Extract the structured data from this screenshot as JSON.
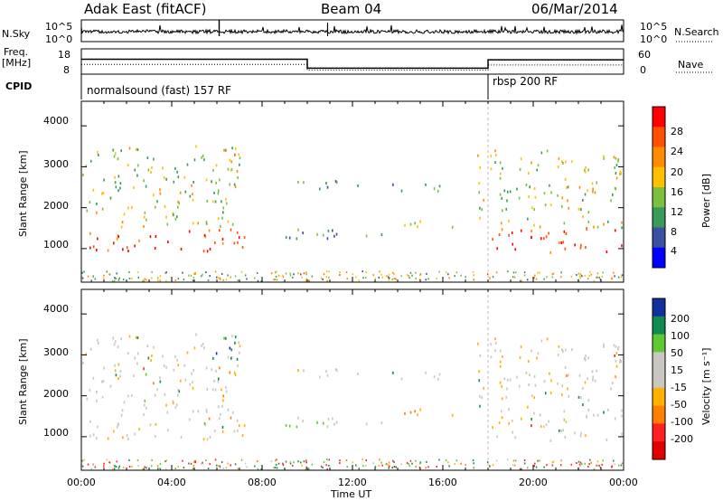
{
  "header": {
    "station": "Adak East (fitACF)",
    "beam": "Beam 04",
    "date": "06/Mar/2014"
  },
  "noise_panel": {
    "left_label": "N.Sky",
    "right_label": "N.Search",
    "left_ticks": [
      "10^5",
      "10^0"
    ],
    "right_ticks": [
      "10^5",
      "10^0"
    ]
  },
  "freq_panel": {
    "left_label_1": "Freq.",
    "left_label_2": "[MHz]",
    "left_ticks": [
      "18",
      "8"
    ],
    "right_label": "Nave",
    "right_ticks": [
      "60",
      "0"
    ],
    "freq_steps": [
      [
        0,
        14.6
      ],
      [
        10.0,
        10.1
      ],
      [
        18.0,
        14.3
      ],
      [
        24,
        14.3
      ]
    ],
    "nave_steps": [
      [
        0,
        24
      ],
      [
        10.0,
        7
      ],
      [
        18.0,
        22
      ],
      [
        24,
        22
      ]
    ]
  },
  "cpid_panel": {
    "label": "CPID",
    "programs": [
      {
        "text": "normalsound (fast) 157 RF",
        "start": 0
      },
      {
        "text": "rbsp 200 RF",
        "start": 18.0
      }
    ]
  },
  "power_panel": {
    "ylabel": "Slant Range [km]",
    "yticks": [
      "4000",
      "3000",
      "2000",
      "1000"
    ],
    "colorbar_label": "Power [dB]",
    "colorbar_ticks": [
      "28",
      "24",
      "20",
      "16",
      "12",
      "8",
      "4"
    ],
    "colorbar_colors": [
      "#ff0000",
      "#ff5000",
      "#ff8c00",
      "#ffc000",
      "#7cc040",
      "#3a9a5a",
      "#3a50a0",
      "#0000ff"
    ]
  },
  "velocity_panel": {
    "ylabel": "Slant Range [km]",
    "yticks": [
      "4000",
      "3000",
      "2000",
      "1000"
    ],
    "colorbar_label": "Velocity [m s⁻¹]",
    "colorbar_ticks": [
      "200",
      "100",
      "50",
      "15",
      "-15",
      "-50",
      "-100",
      "-200"
    ],
    "colorbar_colors": [
      "#1030a0",
      "#108a50",
      "#60c830",
      "#c8c8c0",
      "#c8c8c0",
      "#ffb000",
      "#ff8000",
      "#ff2020",
      "#e00000"
    ]
  },
  "x_axis": {
    "label": "Time UT",
    "ticks": [
      "00:00",
      "04:00",
      "08:00",
      "12:00",
      "16:00",
      "20:00",
      "00:00"
    ]
  },
  "chart_data": {
    "type": "heatmap",
    "title": "Adak East (fitACF) Beam 04 06/Mar/2014",
    "xlabel": "Time UT",
    "ylabel": "Slant Range [km]",
    "xlim": [
      0,
      24
    ],
    "ylim": [
      180,
      4600
    ],
    "power_range_db": [
      0,
      30
    ],
    "velocity_range": [
      -250,
      250
    ],
    "scatter_regions": [
      {
        "name": "early-band",
        "t": [
          0.0,
          7.2
        ],
        "range": [
          900,
          1500
        ],
        "power": 28,
        "velocity": -5
      },
      {
        "name": "early-cloud",
        "t": [
          0.0,
          7.0
        ],
        "range": [
          1500,
          3500
        ],
        "power": 14,
        "velocity": 0
      },
      {
        "name": "early-upper-blue",
        "t": [
          5.8,
          7.2
        ],
        "range": [
          2800,
          3450
        ],
        "power": 22,
        "velocity": 180
      },
      {
        "name": "midday-line",
        "t": [
          8.6,
          14.0
        ],
        "range": [
          1200,
          1500
        ],
        "power": 8,
        "velocity": 40
      },
      {
        "name": "midday-upper",
        "t": [
          9.5,
          16.0
        ],
        "range": [
          2400,
          2650
        ],
        "power": 8,
        "velocity": 0
      },
      {
        "name": "afternoon-band",
        "t": [
          13.5,
          17.0
        ],
        "range": [
          1500,
          1700
        ],
        "power": 12,
        "velocity": -60
      },
      {
        "name": "late-band",
        "t": [
          18.0,
          24.0
        ],
        "range": [
          900,
          1500
        ],
        "power": 28,
        "velocity": -5
      },
      {
        "name": "late-cloud",
        "t": [
          17.5,
          24.0
        ],
        "range": [
          1500,
          3400
        ],
        "power": 15,
        "velocity": 5
      }
    ]
  }
}
